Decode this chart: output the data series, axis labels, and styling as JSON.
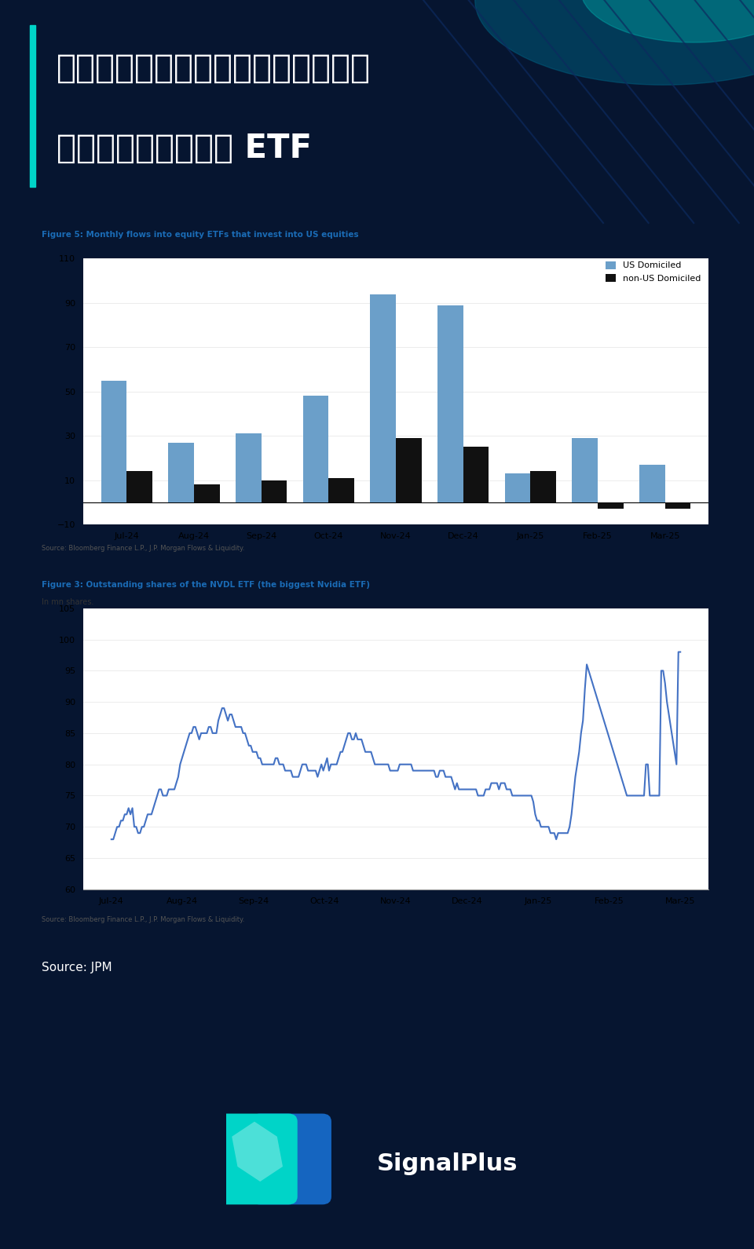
{
  "bg_color": "#061530",
  "title_line1": "美国散户在市场回调期间仍持续买入",
  "title_line2": "（并坚持持有）股票 ETF",
  "title_color": "#ffffff",
  "accent_color": "#00d4c8",
  "diag_color": "#0d2a5e",
  "fig1_title": "Figure 5: Monthly flows into equity ETFs that invest into US equities",
  "fig1_title_color": "#1a6bb5",
  "fig1_source": "Source: Bloomberg Finance L.P., J.P. Morgan Flows & Liquidity.",
  "fig1_categories": [
    "Jul-24",
    "Aug-24",
    "Sep-24",
    "Oct-24",
    "Nov-24",
    "Dec-24",
    "Jan-25",
    "Feb-25",
    "Mar-25"
  ],
  "fig1_us": [
    55,
    27,
    31,
    48,
    94,
    89,
    13,
    29,
    17
  ],
  "fig1_nonus": [
    14,
    8,
    10,
    11,
    29,
    25,
    14,
    -3,
    -3
  ],
  "fig1_us_color": "#6b9fc9",
  "fig1_nonus_color": "#111111",
  "fig1_ylim": [
    -10,
    110
  ],
  "fig1_yticks": [
    -10,
    10,
    30,
    50,
    70,
    90,
    110
  ],
  "fig1_legend_us": "US Domiciled",
  "fig1_legend_nonus": "non-US Domiciled",
  "fig2_title": "Figure 3: Outstanding shares of the NVDL ETF (the biggest Nvidia ETF)",
  "fig2_title_color": "#1a6bb5",
  "fig2_subtitle": "In mn shares.",
  "fig2_source": "Source: Bloomberg Finance L.P., J.P. Morgan Flows & Liquidity.",
  "fig2_ylim": [
    60,
    105
  ],
  "fig2_yticks": [
    60,
    65,
    70,
    75,
    80,
    85,
    90,
    95,
    100,
    105
  ],
  "fig2_xticks": [
    "Jul-24",
    "Aug-24",
    "Sep-24",
    "Oct-24",
    "Nov-24",
    "Dec-24",
    "Jan-25",
    "Feb-25",
    "Mar-25"
  ],
  "fig2_color": "#4472c4",
  "fig2_y": [
    68,
    68,
    69,
    70,
    70,
    71,
    71,
    72,
    72,
    73,
    72,
    73,
    70,
    70,
    69,
    69,
    70,
    70,
    71,
    72,
    72,
    72,
    73,
    74,
    75,
    76,
    76,
    75,
    75,
    75,
    76,
    76,
    76,
    76,
    77,
    78,
    80,
    81,
    82,
    83,
    84,
    85,
    85,
    86,
    86,
    85,
    84,
    85,
    85,
    85,
    85,
    86,
    86,
    85,
    85,
    85,
    87,
    88,
    89,
    89,
    88,
    87,
    88,
    88,
    87,
    86,
    86,
    86,
    86,
    85,
    85,
    84,
    83,
    83,
    82,
    82,
    82,
    81,
    81,
    80,
    80,
    80,
    80,
    80,
    80,
    80,
    81,
    81,
    80,
    80,
    80,
    79,
    79,
    79,
    79,
    78,
    78,
    78,
    78,
    79,
    80,
    80,
    80,
    79,
    79,
    79,
    79,
    79,
    78,
    79,
    80,
    79,
    80,
    81,
    79,
    80,
    80,
    80,
    80,
    81,
    82,
    82,
    83,
    84,
    85,
    85,
    84,
    84,
    85,
    84,
    84,
    84,
    83,
    82,
    82,
    82,
    82,
    81,
    80,
    80,
    80,
    80,
    80,
    80,
    80,
    80,
    79,
    79,
    79,
    79,
    79,
    80,
    80,
    80,
    80,
    80,
    80,
    80,
    79,
    79,
    79,
    79,
    79,
    79,
    79,
    79,
    79,
    79,
    79,
    79,
    78,
    78,
    79,
    79,
    79,
    78,
    78,
    78,
    78,
    77,
    76,
    77,
    76,
    76,
    76,
    76,
    76,
    76,
    76,
    76,
    76,
    76,
    75,
    75,
    75,
    75,
    76,
    76,
    76,
    77,
    77,
    77,
    77,
    76,
    77,
    77,
    77,
    76,
    76,
    76,
    75,
    75,
    75,
    75,
    75,
    75,
    75,
    75,
    75,
    75,
    75,
    74,
    72,
    71,
    71,
    70,
    70,
    70,
    70,
    70,
    69,
    69,
    69,
    68,
    69,
    69,
    69,
    69,
    69,
    69,
    70,
    72,
    75,
    78,
    80,
    82,
    85,
    87,
    92,
    96,
    95,
    94,
    93,
    92,
    91,
    90,
    89,
    88,
    87,
    86,
    85,
    84,
    83,
    82,
    81,
    80,
    79,
    78,
    77,
    76,
    75,
    75,
    75,
    75,
    75,
    75,
    75,
    75,
    75,
    75,
    80,
    80,
    75,
    75,
    75,
    75,
    75,
    75,
    95,
    95,
    93,
    90,
    88,
    86,
    84,
    82,
    80,
    98,
    98
  ]
}
